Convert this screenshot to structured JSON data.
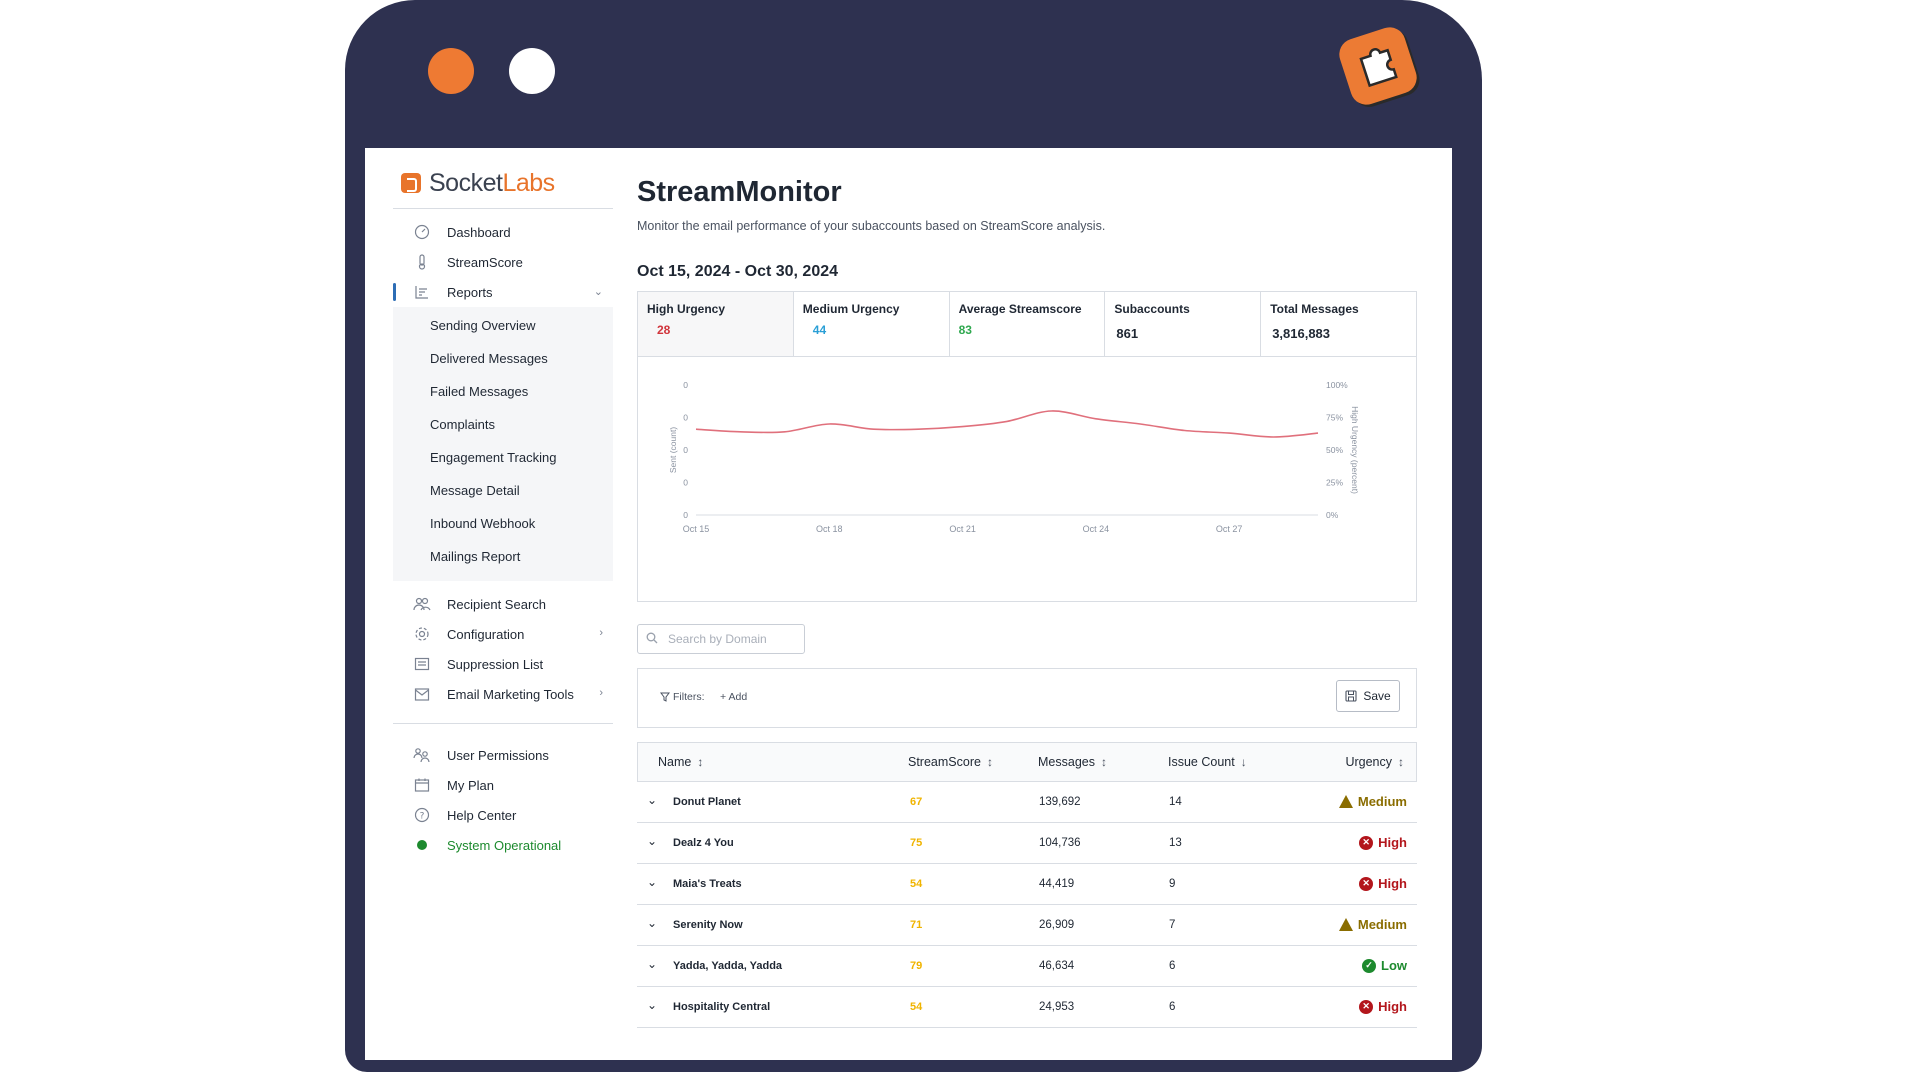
{
  "brand": {
    "word1": "Socket",
    "word2": "Labs"
  },
  "sidebar": {
    "items": [
      {
        "label": "Dashboard",
        "icon": "gauge-icon"
      },
      {
        "label": "StreamScore",
        "icon": "thermometer-icon"
      },
      {
        "label": "Reports",
        "icon": "bar-chart-icon"
      }
    ],
    "reports_sub": [
      "Sending Overview",
      "Delivered Messages",
      "Failed Messages",
      "Complaints",
      "Engagement Tracking",
      "Message Detail",
      "Inbound Webhook",
      "Mailings Report"
    ],
    "group2": [
      {
        "label": "Recipient Search",
        "icon": "people-icon"
      },
      {
        "label": "Configuration",
        "icon": "gear-icon"
      },
      {
        "label": "Suppression List",
        "icon": "list-icon"
      },
      {
        "label": "Email Marketing Tools",
        "icon": "mail-tools-icon"
      }
    ],
    "group3": [
      {
        "label": "User Permissions",
        "icon": "users-icon"
      },
      {
        "label": "My Plan",
        "icon": "calendar-icon"
      },
      {
        "label": "Help Center",
        "icon": "help-icon"
      },
      {
        "label": "System Operational",
        "icon": "status-dot-icon"
      }
    ]
  },
  "main": {
    "title": "StreamMonitor",
    "description": "Monitor the email performance of your subaccounts based on StreamScore analysis.",
    "date_range": "Oct 15, 2024 - Oct 30, 2024",
    "stats": [
      {
        "label": "High Urgency",
        "value": "28",
        "color": "#d1343b"
      },
      {
        "label": "Medium Urgency",
        "value": "44",
        "color": "#2a9fd6"
      },
      {
        "label": "Average Streamscore",
        "value": "83",
        "color": "#2fa84f"
      },
      {
        "label": "Subaccounts",
        "value": "861",
        "color": "#1f2733"
      },
      {
        "label": "Total Messages",
        "value": "3,816,883",
        "color": "#1f2733"
      }
    ],
    "search": {
      "placeholder": "Search by Domain"
    },
    "filters": {
      "label": "Filters:",
      "add": "+ Add",
      "save": "Save"
    },
    "table": {
      "columns": [
        "Name",
        "StreamScore",
        "Messages",
        "Issue Count",
        "Urgency"
      ],
      "rows": [
        {
          "name": "Donut Planet",
          "score": "67",
          "messages": "139,692",
          "issues": "14",
          "urgency": "Medium"
        },
        {
          "name": "Dealz 4 You",
          "score": "75",
          "messages": "104,736",
          "issues": "13",
          "urgency": "High"
        },
        {
          "name": "Maia's Treats",
          "score": "54",
          "messages": "44,419",
          "issues": "9",
          "urgency": "High"
        },
        {
          "name": "Serenity Now",
          "score": "71",
          "messages": "26,909",
          "issues": "7",
          "urgency": "Medium"
        },
        {
          "name": "Yadda, Yadda, Yadda",
          "score": "79",
          "messages": "46,634",
          "issues": "6",
          "urgency": "Low"
        },
        {
          "name": "Hospitality Central",
          "score": "54",
          "messages": "24,953",
          "issues": "6",
          "urgency": "High"
        }
      ]
    }
  },
  "chart_data": {
    "type": "line",
    "x": [
      "Oct 15",
      "Oct 16",
      "Oct 17",
      "Oct 18",
      "Oct 19",
      "Oct 20",
      "Oct 21",
      "Oct 22",
      "Oct 23",
      "Oct 24",
      "Oct 25",
      "Oct 26",
      "Oct 27",
      "Oct 28",
      "Oct 29"
    ],
    "x_tick_labels": [
      "Oct 15",
      "Oct 18",
      "Oct 21",
      "Oct 24",
      "Oct 27"
    ],
    "series": [
      {
        "axis": "right",
        "color": "#e0707c",
        "values": [
          66,
          64,
          64,
          70,
          66,
          66,
          68,
          72,
          80,
          74,
          70,
          65,
          63,
          60,
          63
        ]
      }
    ],
    "ylabel_left": "Sent (count)",
    "ylabel_right": "High Urgency (percent)",
    "left_ticks": [
      "0",
      "0",
      "0",
      "0",
      "0"
    ],
    "right_ticks": [
      "100%",
      "75%",
      "50%",
      "25%",
      "0%"
    ],
    "ylim_right": [
      0,
      100
    ]
  }
}
